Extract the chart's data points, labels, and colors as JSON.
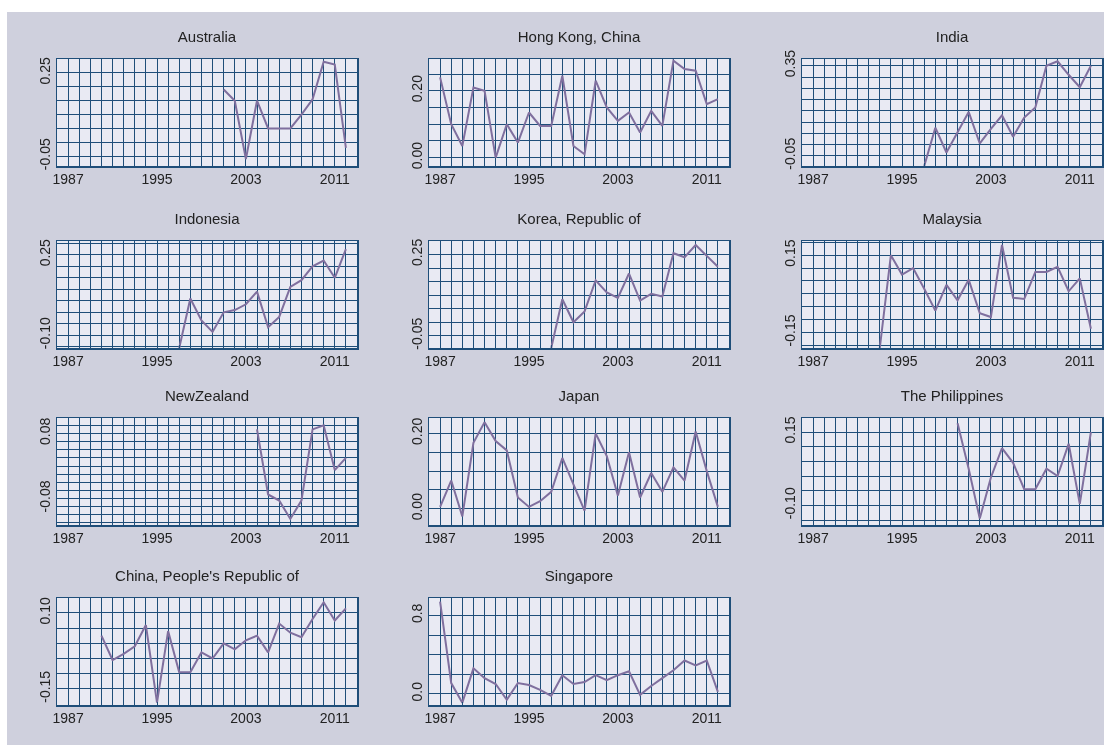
{
  "chart_data": [
    {
      "type": "line",
      "title": "Australia",
      "series": [
        {
          "color": "#7f6f9e",
          "x": [
            2001,
            2002,
            2003,
            2004,
            2005,
            2006,
            2007,
            2008,
            2009,
            2010,
            2011,
            2012
          ],
          "values": [
            0.19,
            0.15,
            -0.06,
            0.15,
            0.05,
            0.05,
            0.05,
            0.1,
            0.155,
            0.29,
            0.28,
            -0.02
          ]
        }
      ],
      "xlim": [
        1986,
        2013
      ],
      "xticks": [
        1987,
        {
          "value": 1988,
          "label": null
        },
        {
          "value": 1989,
          "label": null
        },
        {
          "value": 1990,
          "label": null
        },
        {
          "value": 1991,
          "label": null
        },
        {
          "value": 1992,
          "label": null
        },
        {
          "value": 1993,
          "label": null
        },
        {
          "value": 1994,
          "label": null
        },
        1995,
        {
          "value": 1996,
          "label": null
        },
        {
          "value": 1997,
          "label": null
        },
        {
          "value": 1998,
          "label": null
        },
        {
          "value": 1999,
          "label": null
        },
        {
          "value": 2000,
          "label": null
        },
        {
          "value": 2001,
          "label": null
        },
        {
          "value": 2002,
          "label": null
        },
        2003,
        {
          "value": 2004,
          "label": null
        },
        {
          "value": 2005,
          "label": null
        },
        {
          "value": 2006,
          "label": null
        },
        {
          "value": 2007,
          "label": null
        },
        {
          "value": 2008,
          "label": null
        },
        {
          "value": 2009,
          "label": null
        },
        {
          "value": 2010,
          "label": null
        },
        2011,
        {
          "value": 2012,
          "label": null
        }
      ],
      "ylim": [
        -0.085,
        0.3
      ],
      "yticks": [
        -0.05,
        {
          "value": 0,
          "label": null
        },
        {
          "value": 0.05,
          "label": null
        },
        {
          "value": 0.1,
          "label": null
        },
        {
          "value": 0.15,
          "label": null
        },
        {
          "value": 0.2,
          "label": null
        },
        0.25,
        {
          "value": 0.3,
          "label": null
        }
      ],
      "grid": true
    },
    {
      "type": "line",
      "title": "Hong Kong, China",
      "series": [
        {
          "color": "#7f6f9e",
          "x": [
            1987,
            1988,
            1989,
            1990,
            1991,
            1992,
            1993,
            1994,
            1995,
            1996,
            1997,
            1998,
            1999,
            2000,
            2001,
            2002,
            2003,
            2004,
            2005,
            2006,
            2007,
            2008,
            2009,
            2010,
            2011,
            2012
          ],
          "values": [
            0.24,
            0.1,
            0.035,
            0.21,
            0.2,
            0.0,
            0.1,
            0.045,
            0.135,
            0.095,
            0.095,
            0.245,
            0.035,
            0.01,
            0.23,
            0.15,
            0.11,
            0.135,
            0.075,
            0.14,
            0.095,
            0.29,
            0.265,
            0.26,
            0.16,
            0.175
          ]
        }
      ],
      "xlim": [
        1986,
        2013
      ],
      "xticks": [
        1987,
        {
          "value": 1988,
          "label": null
        },
        {
          "value": 1989,
          "label": null
        },
        {
          "value": 1990,
          "label": null
        },
        {
          "value": 1991,
          "label": null
        },
        {
          "value": 1992,
          "label": null
        },
        {
          "value": 1993,
          "label": null
        },
        {
          "value": 1994,
          "label": null
        },
        1995,
        {
          "value": 1996,
          "label": null
        },
        {
          "value": 1997,
          "label": null
        },
        {
          "value": 1998,
          "label": null
        },
        {
          "value": 1999,
          "label": null
        },
        {
          "value": 2000,
          "label": null
        },
        {
          "value": 2001,
          "label": null
        },
        {
          "value": 2002,
          "label": null
        },
        2003,
        {
          "value": 2004,
          "label": null
        },
        {
          "value": 2005,
          "label": null
        },
        {
          "value": 2006,
          "label": null
        },
        {
          "value": 2007,
          "label": null
        },
        {
          "value": 2008,
          "label": null
        },
        {
          "value": 2009,
          "label": null
        },
        {
          "value": 2010,
          "label": null
        },
        2011,
        {
          "value": 2012,
          "label": null
        }
      ],
      "ylim": [
        -0.025,
        0.295
      ],
      "yticks": [
        {
          "value": 0,
          "label": "0.00"
        },
        {
          "value": 0.05,
          "label": null
        },
        {
          "value": 0.1,
          "label": null
        },
        {
          "value": 0.15,
          "label": null
        },
        {
          "value": 0.2,
          "label": "0.20"
        },
        {
          "value": 0.25,
          "label": null
        }
      ],
      "grid": true
    },
    {
      "type": "line",
      "title": "India",
      "series": [
        {
          "color": "#7f6f9e",
          "x": [
            1997,
            1998,
            1999,
            2000,
            2001,
            2002,
            2003,
            2004,
            2005,
            2006,
            2007,
            2008,
            2009,
            2010,
            2011,
            2012
          ],
          "values": [
            -0.095,
            0.075,
            -0.035,
            0.055,
            0.145,
            0.005,
            0.07,
            0.13,
            0.035,
            0.12,
            0.165,
            0.35,
            0.37,
            0.31,
            0.255,
            0.35
          ]
        }
      ],
      "xlim": [
        1986,
        2013
      ],
      "xticks": [
        1987,
        {
          "value": 1988,
          "label": null
        },
        {
          "value": 1989,
          "label": null
        },
        {
          "value": 1990,
          "label": null
        },
        {
          "value": 1991,
          "label": null
        },
        {
          "value": 1992,
          "label": null
        },
        {
          "value": 1993,
          "label": null
        },
        {
          "value": 1994,
          "label": null
        },
        1995,
        {
          "value": 1996,
          "label": null
        },
        {
          "value": 1997,
          "label": null
        },
        {
          "value": 1998,
          "label": null
        },
        {
          "value": 1999,
          "label": null
        },
        {
          "value": 2000,
          "label": null
        },
        {
          "value": 2001,
          "label": null
        },
        {
          "value": 2002,
          "label": null
        },
        2003,
        {
          "value": 2004,
          "label": null
        },
        {
          "value": 2005,
          "label": null
        },
        {
          "value": 2006,
          "label": null
        },
        {
          "value": 2007,
          "label": null
        },
        {
          "value": 2008,
          "label": null
        },
        {
          "value": 2009,
          "label": null
        },
        {
          "value": 2010,
          "label": null
        },
        2011,
        {
          "value": 2012,
          "label": null
        }
      ],
      "ylim": [
        -0.095,
        0.38
      ],
      "yticks": [
        -0.05,
        {
          "value": 0,
          "label": null
        },
        {
          "value": 0.05,
          "label": null
        },
        {
          "value": 0.1,
          "label": null
        },
        {
          "value": 0.15,
          "label": null
        },
        {
          "value": 0.2,
          "label": null
        },
        {
          "value": 0.25,
          "label": null
        },
        {
          "value": 0.3,
          "label": null
        },
        0.35
      ],
      "grid": true
    },
    {
      "type": "line",
      "title": "Indonesia",
      "series": [
        {
          "color": "#7f6f9e",
          "x": [
            1997,
            1998,
            1999,
            2000,
            2001,
            2002,
            2003,
            2004,
            2005,
            2006,
            2007,
            2008,
            2009,
            2010,
            2011,
            2012
          ],
          "values": [
            -0.155,
            0.06,
            -0.035,
            -0.085,
            0.0,
            0.01,
            0.035,
            0.09,
            -0.065,
            -0.02,
            0.11,
            0.14,
            0.2,
            0.225,
            0.15,
            0.275
          ]
        }
      ],
      "xlim": [
        1986,
        2013
      ],
      "xticks": [
        1987,
        {
          "value": 1988,
          "label": null
        },
        {
          "value": 1989,
          "label": null
        },
        {
          "value": 1990,
          "label": null
        },
        {
          "value": 1991,
          "label": null
        },
        {
          "value": 1992,
          "label": null
        },
        {
          "value": 1993,
          "label": null
        },
        {
          "value": 1994,
          "label": null
        },
        1995,
        {
          "value": 1996,
          "label": null
        },
        {
          "value": 1997,
          "label": null
        },
        {
          "value": 1998,
          "label": null
        },
        {
          "value": 1999,
          "label": null
        },
        {
          "value": 2000,
          "label": null
        },
        {
          "value": 2001,
          "label": null
        },
        {
          "value": 2002,
          "label": null
        },
        2003,
        {
          "value": 2004,
          "label": null
        },
        {
          "value": 2005,
          "label": null
        },
        {
          "value": 2006,
          "label": null
        },
        {
          "value": 2007,
          "label": null
        },
        {
          "value": 2008,
          "label": null
        },
        {
          "value": 2009,
          "label": null
        },
        {
          "value": 2010,
          "label": null
        },
        2011,
        {
          "value": 2012,
          "label": null
        }
      ],
      "ylim": [
        -0.155,
        0.31
      ],
      "yticks": [
        {
          "value": -0.15,
          "label": null
        },
        {
          "value": -0.1,
          "label": "-0.10"
        },
        {
          "value": -0.05,
          "label": null
        },
        {
          "value": 0,
          "label": null
        },
        {
          "value": 0.05,
          "label": null
        },
        {
          "value": 0.1,
          "label": null
        },
        {
          "value": 0.15,
          "label": null
        },
        {
          "value": 0.2,
          "label": null
        },
        0.25,
        {
          "value": 0.3,
          "label": null
        }
      ],
      "grid": true
    },
    {
      "type": "line",
      "title": "Korea, Republic of",
      "series": [
        {
          "color": "#7f6f9e",
          "x": [
            1997,
            1998,
            1999,
            2000,
            2001,
            2002,
            2003,
            2004,
            2005,
            2006,
            2007,
            2008,
            2009,
            2010,
            2011,
            2012
          ],
          "values": [
            -0.095,
            0.085,
            0.0,
            0.04,
            0.155,
            0.11,
            0.09,
            0.18,
            0.08,
            0.105,
            0.095,
            0.255,
            0.24,
            0.285,
            0.245,
            0.205
          ]
        }
      ],
      "xlim": [
        1986,
        2013
      ],
      "xticks": [
        1987,
        {
          "value": 1988,
          "label": null
        },
        {
          "value": 1989,
          "label": null
        },
        {
          "value": 1990,
          "label": null
        },
        {
          "value": 1991,
          "label": null
        },
        {
          "value": 1992,
          "label": null
        },
        {
          "value": 1993,
          "label": null
        },
        {
          "value": 1994,
          "label": null
        },
        1995,
        {
          "value": 1996,
          "label": null
        },
        {
          "value": 1997,
          "label": null
        },
        {
          "value": 1998,
          "label": null
        },
        {
          "value": 1999,
          "label": null
        },
        {
          "value": 2000,
          "label": null
        },
        {
          "value": 2001,
          "label": null
        },
        {
          "value": 2002,
          "label": null
        },
        2003,
        {
          "value": 2004,
          "label": null
        },
        {
          "value": 2005,
          "label": null
        },
        {
          "value": 2006,
          "label": null
        },
        {
          "value": 2007,
          "label": null
        },
        {
          "value": 2008,
          "label": null
        },
        {
          "value": 2009,
          "label": null
        },
        {
          "value": 2010,
          "label": null
        },
        2011,
        {
          "value": 2012,
          "label": null
        }
      ],
      "ylim": [
        -0.095,
        0.3
      ],
      "yticks": [
        -0.05,
        {
          "value": 0,
          "label": null
        },
        {
          "value": 0.05,
          "label": null
        },
        {
          "value": 0.1,
          "label": null
        },
        {
          "value": 0.15,
          "label": null
        },
        {
          "value": 0.2,
          "label": null
        },
        0.25
      ],
      "grid": true
    },
    {
      "type": "line",
      "title": "Malaysia",
      "series": [
        {
          "color": "#7f6f9e",
          "x": [
            1993,
            1994,
            1995,
            1996,
            1997,
            1998,
            1999,
            2000,
            2001,
            2002,
            2003,
            2004,
            2005,
            2006,
            2007,
            2008,
            2009,
            2010,
            2011,
            2012
          ],
          "values": [
            -0.21,
            0.15,
            0.075,
            0.1,
            0.02,
            -0.065,
            0.035,
            -0.025,
            0.055,
            -0.075,
            -0.09,
            0.19,
            -0.015,
            -0.02,
            0.085,
            0.085,
            0.105,
            0.01,
            0.06,
            -0.135
          ]
        }
      ],
      "xlim": [
        1986,
        2013
      ],
      "xticks": [
        1987,
        {
          "value": 1988,
          "label": null
        },
        {
          "value": 1989,
          "label": null
        },
        {
          "value": 1990,
          "label": null
        },
        {
          "value": 1991,
          "label": null
        },
        {
          "value": 1992,
          "label": null
        },
        {
          "value": 1993,
          "label": null
        },
        {
          "value": 1994,
          "label": null
        },
        1995,
        {
          "value": 1996,
          "label": null
        },
        {
          "value": 1997,
          "label": null
        },
        {
          "value": 1998,
          "label": null
        },
        {
          "value": 1999,
          "label": null
        },
        {
          "value": 2000,
          "label": null
        },
        {
          "value": 2001,
          "label": null
        },
        {
          "value": 2002,
          "label": null
        },
        2003,
        {
          "value": 2004,
          "label": null
        },
        {
          "value": 2005,
          "label": null
        },
        {
          "value": 2006,
          "label": null
        },
        {
          "value": 2007,
          "label": null
        },
        {
          "value": 2008,
          "label": null
        },
        {
          "value": 2009,
          "label": null
        },
        {
          "value": 2010,
          "label": null
        },
        2011,
        {
          "value": 2012,
          "label": null
        }
      ],
      "ylim": [
        -0.21,
        0.205
      ],
      "yticks": [
        {
          "value": -0.2,
          "label": null
        },
        -0.15,
        {
          "value": -0.1,
          "label": null
        },
        {
          "value": -0.05,
          "label": null
        },
        {
          "value": 0,
          "label": null
        },
        {
          "value": 0.05,
          "label": null
        },
        {
          "value": 0.1,
          "label": null
        },
        0.15,
        {
          "value": 0.2,
          "label": null
        }
      ],
      "grid": true
    },
    {
      "type": "line",
      "title": "NewZealand",
      "series": [
        {
          "color": "#7f6f9e",
          "x": [
            2004,
            2005,
            2006,
            2007,
            2008,
            2009,
            2010,
            2011,
            2012
          ],
          "values": [
            0.09,
            -0.07,
            -0.085,
            -0.13,
            -0.085,
            0.09,
            0.1,
            -0.01,
            0.02
          ]
        }
      ],
      "xlim": [
        1986,
        2013
      ],
      "xticks": [
        1987,
        {
          "value": 1988,
          "label": null
        },
        {
          "value": 1989,
          "label": null
        },
        {
          "value": 1990,
          "label": null
        },
        {
          "value": 1991,
          "label": null
        },
        {
          "value": 1992,
          "label": null
        },
        {
          "value": 1993,
          "label": null
        },
        {
          "value": 1994,
          "label": null
        },
        1995,
        {
          "value": 1996,
          "label": null
        },
        {
          "value": 1997,
          "label": null
        },
        {
          "value": 1998,
          "label": null
        },
        {
          "value": 1999,
          "label": null
        },
        {
          "value": 2000,
          "label": null
        },
        {
          "value": 2001,
          "label": null
        },
        {
          "value": 2002,
          "label": null
        },
        2003,
        {
          "value": 2004,
          "label": null
        },
        {
          "value": 2005,
          "label": null
        },
        {
          "value": 2006,
          "label": null
        },
        {
          "value": 2007,
          "label": null
        },
        {
          "value": 2008,
          "label": null
        },
        {
          "value": 2009,
          "label": null
        },
        {
          "value": 2010,
          "label": null
        },
        2011,
        {
          "value": 2012,
          "label": null
        }
      ],
      "ylim": [
        -0.145,
        0.118
      ],
      "yticks": [
        {
          "value": -0.14,
          "label": null
        },
        {
          "value": -0.12,
          "label": null
        },
        {
          "value": -0.1,
          "label": null
        },
        -0.08,
        {
          "value": -0.06,
          "label": null
        },
        {
          "value": -0.04,
          "label": null
        },
        {
          "value": -0.02,
          "label": null
        },
        {
          "value": 0,
          "label": null
        },
        {
          "value": 0.02,
          "label": null
        },
        {
          "value": 0.04,
          "label": null
        },
        {
          "value": 0.06,
          "label": null
        },
        0.08,
        {
          "value": 0.1,
          "label": null
        }
      ],
      "grid": true
    },
    {
      "type": "line",
      "title": "Japan",
      "series": [
        {
          "color": "#7f6f9e",
          "x": [
            1987,
            1988,
            1989,
            1990,
            1991,
            1992,
            1993,
            1994,
            1995,
            1996,
            1997,
            1998,
            1999,
            2000,
            2001,
            2002,
            2003,
            2004,
            2005,
            2006,
            2007,
            2008,
            2009,
            2010,
            2011,
            2012
          ],
          "values": [
            0.005,
            0.075,
            -0.02,
            0.175,
            0.23,
            0.18,
            0.155,
            0.03,
            0.005,
            0.02,
            0.045,
            0.135,
            0.065,
            -0.005,
            0.2,
            0.14,
            0.035,
            0.15,
            0.03,
            0.095,
            0.045,
            0.11,
            0.075,
            0.205,
            0.1,
            0.005
          ]
        }
      ],
      "xlim": [
        1986,
        2013
      ],
      "xticks": [
        1987,
        {
          "value": 1988,
          "label": null
        },
        {
          "value": 1989,
          "label": null
        },
        {
          "value": 1990,
          "label": null
        },
        {
          "value": 1991,
          "label": null
        },
        {
          "value": 1992,
          "label": null
        },
        {
          "value": 1993,
          "label": null
        },
        {
          "value": 1994,
          "label": null
        },
        1995,
        {
          "value": 1996,
          "label": null
        },
        {
          "value": 1997,
          "label": null
        },
        {
          "value": 1998,
          "label": null
        },
        {
          "value": 1999,
          "label": null
        },
        {
          "value": 2000,
          "label": null
        },
        {
          "value": 2001,
          "label": null
        },
        {
          "value": 2002,
          "label": null
        },
        2003,
        {
          "value": 2004,
          "label": null
        },
        {
          "value": 2005,
          "label": null
        },
        {
          "value": 2006,
          "label": null
        },
        {
          "value": 2007,
          "label": null
        },
        {
          "value": 2008,
          "label": null
        },
        {
          "value": 2009,
          "label": null
        },
        {
          "value": 2010,
          "label": null
        },
        2011,
        {
          "value": 2012,
          "label": null
        }
      ],
      "ylim": [
        -0.043,
        0.241
      ],
      "yticks": [
        {
          "value": 0,
          "label": "0.00"
        },
        {
          "value": 0.05,
          "label": null
        },
        {
          "value": 0.1,
          "label": null
        },
        {
          "value": 0.15,
          "label": null
        },
        {
          "value": 0.2,
          "label": "0.20"
        }
      ],
      "grid": true
    },
    {
      "type": "line",
      "title": "The Philippines",
      "series": [
        {
          "color": "#7f6f9e",
          "x": [
            2000,
            2001,
            2002,
            2003,
            2004,
            2005,
            2006,
            2007,
            2008,
            2009,
            2010,
            2011,
            2012
          ],
          "values": [
            0.18,
            0.025,
            -0.145,
            -0.005,
            0.095,
            0.045,
            -0.045,
            -0.045,
            0.025,
            0.0,
            0.11,
            -0.095,
            0.15
          ]
        }
      ],
      "xlim": [
        1986,
        2013
      ],
      "xticks": [
        1987,
        {
          "value": 1988,
          "label": null
        },
        {
          "value": 1989,
          "label": null
        },
        {
          "value": 1990,
          "label": null
        },
        {
          "value": 1991,
          "label": null
        },
        {
          "value": 1992,
          "label": null
        },
        {
          "value": 1993,
          "label": null
        },
        {
          "value": 1994,
          "label": null
        },
        1995,
        {
          "value": 1996,
          "label": null
        },
        {
          "value": 1997,
          "label": null
        },
        {
          "value": 1998,
          "label": null
        },
        {
          "value": 1999,
          "label": null
        },
        {
          "value": 2000,
          "label": null
        },
        {
          "value": 2001,
          "label": null
        },
        {
          "value": 2002,
          "label": null
        },
        2003,
        {
          "value": 2004,
          "label": null
        },
        {
          "value": 2005,
          "label": null
        },
        {
          "value": 2006,
          "label": null
        },
        {
          "value": 2007,
          "label": null
        },
        {
          "value": 2008,
          "label": null
        },
        {
          "value": 2009,
          "label": null
        },
        {
          "value": 2010,
          "label": null
        },
        2011,
        {
          "value": 2012,
          "label": null
        }
      ],
      "ylim": [
        -0.167,
        0.198
      ],
      "yticks": [
        {
          "value": -0.15,
          "label": null
        },
        {
          "value": -0.1,
          "label": "-0.10"
        },
        {
          "value": -0.05,
          "label": null
        },
        {
          "value": 0,
          "label": null
        },
        {
          "value": 0.05,
          "label": null
        },
        {
          "value": 0.1,
          "label": null
        },
        0.15
      ],
      "grid": true
    },
    {
      "type": "line",
      "title": "China, People's Republic of",
      "series": [
        {
          "color": "#7f6f9e",
          "x": [
            1990,
            1991,
            1992,
            1993,
            1994,
            1995,
            1996,
            1997,
            1998,
            1999,
            2000,
            2001,
            2002,
            2003,
            2004,
            2005,
            2006,
            2007,
            2008,
            2009,
            2010,
            2011,
            2012
          ],
          "values": [
            0.025,
            -0.055,
            -0.035,
            -0.01,
            0.06,
            -0.195,
            0.04,
            -0.095,
            -0.095,
            -0.03,
            -0.05,
            0.0,
            -0.02,
            0.01,
            0.025,
            -0.03,
            0.065,
            0.035,
            0.02,
            0.08,
            0.135,
            0.075,
            0.115
          ]
        }
      ],
      "xlim": [
        1986,
        2013
      ],
      "xticks": [
        1987,
        {
          "value": 1988,
          "label": null
        },
        {
          "value": 1989,
          "label": null
        },
        {
          "value": 1990,
          "label": null
        },
        {
          "value": 1991,
          "label": null
        },
        {
          "value": 1992,
          "label": null
        },
        {
          "value": 1993,
          "label": null
        },
        {
          "value": 1994,
          "label": null
        },
        1995,
        {
          "value": 1996,
          "label": null
        },
        {
          "value": 1997,
          "label": null
        },
        {
          "value": 1998,
          "label": null
        },
        {
          "value": 1999,
          "label": null
        },
        {
          "value": 2000,
          "label": null
        },
        {
          "value": 2001,
          "label": null
        },
        {
          "value": 2002,
          "label": null
        },
        2003,
        {
          "value": 2004,
          "label": null
        },
        {
          "value": 2005,
          "label": null
        },
        {
          "value": 2006,
          "label": null
        },
        {
          "value": 2007,
          "label": null
        },
        {
          "value": 2008,
          "label": null
        },
        {
          "value": 2009,
          "label": null
        },
        {
          "value": 2010,
          "label": null
        },
        2011,
        {
          "value": 2012,
          "label": null
        }
      ],
      "ylim": [
        -0.203,
        0.149
      ],
      "yticks": [
        {
          "value": -0.2,
          "label": null
        },
        -0.15,
        {
          "value": -0.1,
          "label": null
        },
        {
          "value": -0.05,
          "label": null
        },
        {
          "value": 0,
          "label": null
        },
        {
          "value": 0.05,
          "label": null
        },
        {
          "value": 0.1,
          "label": "0.10"
        }
      ],
      "grid": true
    },
    {
      "type": "line",
      "title": "Singapore",
      "series": [
        {
          "color": "#7f6f9e",
          "x": [
            1987,
            1988,
            1989,
            1990,
            1991,
            1992,
            1993,
            1994,
            1995,
            1996,
            1997,
            1998,
            1999,
            2000,
            2001,
            2002,
            2003,
            2004,
            2005,
            2006,
            2007,
            2008,
            2009,
            2010,
            2011,
            2012
          ],
          "values": [
            0.94,
            0.11,
            -0.09,
            0.26,
            0.16,
            0.1,
            -0.06,
            0.11,
            0.09,
            0.04,
            -0.02,
            0.19,
            0.1,
            0.12,
            0.19,
            0.14,
            0.19,
            0.23,
            -0.01,
            0.08,
            0.16,
            0.24,
            0.34,
            0.29,
            0.34,
            0.02
          ]
        }
      ],
      "xlim": [
        1986,
        2013
      ],
      "xticks": [
        1987,
        {
          "value": 1988,
          "label": null
        },
        {
          "value": 1989,
          "label": null
        },
        {
          "value": 1990,
          "label": null
        },
        {
          "value": 1991,
          "label": null
        },
        {
          "value": 1992,
          "label": null
        },
        {
          "value": 1993,
          "label": null
        },
        {
          "value": 1994,
          "label": null
        },
        1995,
        {
          "value": 1996,
          "label": null
        },
        {
          "value": 1997,
          "label": null
        },
        {
          "value": 1998,
          "label": null
        },
        {
          "value": 1999,
          "label": null
        },
        {
          "value": 2000,
          "label": null
        },
        {
          "value": 2001,
          "label": null
        },
        {
          "value": 2002,
          "label": null
        },
        2003,
        {
          "value": 2004,
          "label": null
        },
        {
          "value": 2005,
          "label": null
        },
        {
          "value": 2006,
          "label": null
        },
        {
          "value": 2007,
          "label": null
        },
        {
          "value": 2008,
          "label": null
        },
        {
          "value": 2009,
          "label": null
        },
        {
          "value": 2010,
          "label": null
        },
        2011,
        {
          "value": 2012,
          "label": null
        }
      ],
      "ylim": [
        -0.114,
        0.978
      ],
      "yticks": [
        {
          "value": 0,
          "label": "0.0"
        },
        {
          "value": 0.2,
          "label": null
        },
        {
          "value": 0.4,
          "label": null
        },
        {
          "value": 0.6,
          "label": null
        },
        0.8
      ],
      "grid": true
    }
  ]
}
